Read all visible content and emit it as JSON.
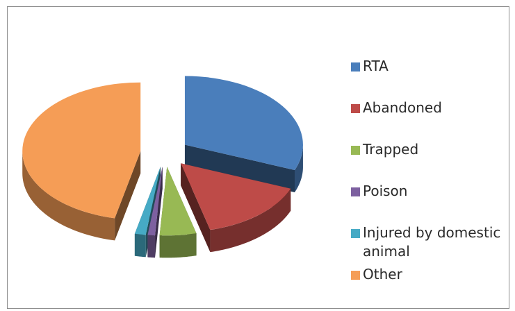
{
  "chart_data": {
    "type": "pie",
    "title": "",
    "exploded": true,
    "three_d": true,
    "legend_position": "right",
    "slices": [
      {
        "label": "RTA",
        "value": 31,
        "color": "#4a7ebb"
      },
      {
        "label": "Abandoned",
        "value": 15,
        "color": "#be4b48"
      },
      {
        "label": "Trapped",
        "value": 5,
        "color": "#98b954"
      },
      {
        "label": "Poison",
        "value": 1,
        "color": "#7d60a0"
      },
      {
        "label": "Injured by domestic animal",
        "value": 1.5,
        "color": "#46aac5"
      },
      {
        "label": "Other",
        "value": 46.5,
        "color": "#f59d56"
      }
    ]
  },
  "legend": {
    "items": [
      {
        "label": "RTA",
        "color": "#4a7ebb"
      },
      {
        "label": "Abandoned",
        "color": "#be4b48"
      },
      {
        "label": "Trapped",
        "color": "#98b954"
      },
      {
        "label": "Poison",
        "color": "#7d60a0"
      },
      {
        "label": "Injured by domestic animal",
        "color": "#46aac5"
      },
      {
        "label": "Other",
        "color": "#f59d56"
      }
    ]
  }
}
